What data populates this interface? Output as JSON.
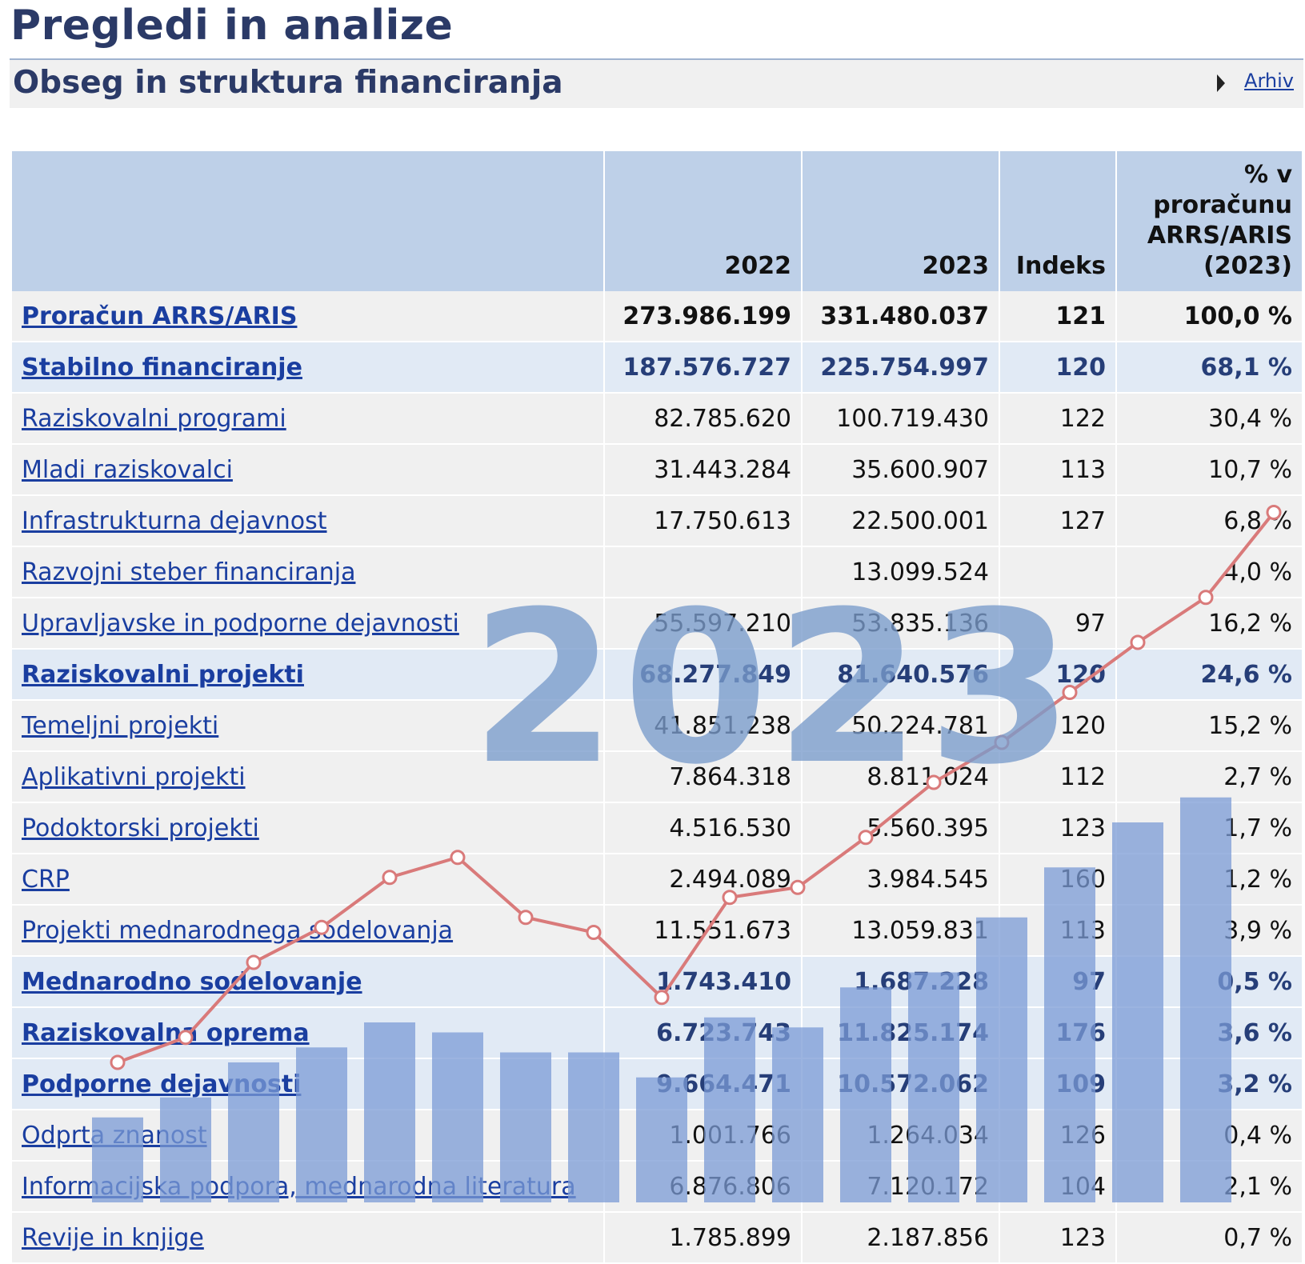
{
  "page": {
    "title": "Pregledi in analize",
    "subtitle": "Obseg in struktura financiranja",
    "archive_link": "Arhiv"
  },
  "table": {
    "headers": [
      "",
      "2022",
      "2023",
      "Indeks",
      "% v proračunu ARRS/ARIS (2023)"
    ],
    "rows": [
      {
        "kind": "total",
        "label": "Proračun ARRS/ARIS",
        "y2022": "273.986.199",
        "y2023": "331.480.037",
        "index": "121",
        "pct": "100,0 %"
      },
      {
        "kind": "group",
        "label": "Stabilno financiranje",
        "y2022": "187.576.727",
        "y2023": "225.754.997",
        "index": "120",
        "pct": "68,1 %"
      },
      {
        "kind": "sub",
        "label": "Raziskovalni programi",
        "y2022": "82.785.620",
        "y2023": "100.719.430",
        "index": "122",
        "pct": "30,4 %"
      },
      {
        "kind": "sub",
        "label": "Mladi raziskovalci",
        "y2022": "31.443.284",
        "y2023": "35.600.907",
        "index": "113",
        "pct": "10,7 %"
      },
      {
        "kind": "sub",
        "label": "Infrastrukturna dejavnost",
        "y2022": "17.750.613",
        "y2023": "22.500.001",
        "index": "127",
        "pct": "6,8 %"
      },
      {
        "kind": "sub",
        "label": "Razvojni steber financiranja",
        "y2022": "",
        "y2023": "13.099.524",
        "index": "",
        "pct": "4,0 %"
      },
      {
        "kind": "sub",
        "label": "Upravljavske in podporne dejavnosti",
        "y2022": "55.597.210",
        "y2023": "53.835.136",
        "index": "97",
        "pct": "16,2 %"
      },
      {
        "kind": "group",
        "label": "Raziskovalni projekti",
        "y2022": "68.277.849",
        "y2023": "81.640.576",
        "index": "120",
        "pct": "24,6 %"
      },
      {
        "kind": "sub",
        "label": "Temeljni projekti",
        "y2022": "41.851.238",
        "y2023": "50.224.781",
        "index": "120",
        "pct": "15,2 %"
      },
      {
        "kind": "sub",
        "label": "Aplikativni projekti",
        "y2022": "7.864.318",
        "y2023": "8.811.024",
        "index": "112",
        "pct": "2,7 %"
      },
      {
        "kind": "sub",
        "label": "Podoktorski projekti",
        "y2022": "4.516.530",
        "y2023": "5.560.395",
        "index": "123",
        "pct": "1,7 %"
      },
      {
        "kind": "sub",
        "label": "CRP",
        "y2022": "2.494.089",
        "y2023": "3.984.545",
        "index": "160",
        "pct": "1,2 %"
      },
      {
        "kind": "sub",
        "label": "Projekti mednarodnega sodelovanja",
        "y2022": "11.551.673",
        "y2023": "13.059.831",
        "index": "113",
        "pct": "3,9 %"
      },
      {
        "kind": "group",
        "label": "Mednarodno sodelovanje",
        "y2022": "1.743.410",
        "y2023": "1.687.228",
        "index": "97",
        "pct": "0,5 %"
      },
      {
        "kind": "group",
        "label": "Raziskovalna oprema",
        "y2022": "6.723.743",
        "y2023": "11.825.174",
        "index": "176",
        "pct": "3,6 %"
      },
      {
        "kind": "group",
        "label": "Podporne dejavnosti",
        "y2022": "9.664.471",
        "y2023": "10.572.062",
        "index": "109",
        "pct": "3,2 %"
      },
      {
        "kind": "sub",
        "label": "Odprta znanost",
        "y2022": "1.001.766",
        "y2023": "1.264.034",
        "index": "126",
        "pct": "0,4 %"
      },
      {
        "kind": "sub",
        "label": "Informacijska podpora, mednarodna literatura",
        "y2022": "6.876.806",
        "y2023": "7.120.172",
        "index": "104",
        "pct": "2,1 %"
      },
      {
        "kind": "sub",
        "label": "Revije in knjige",
        "y2022": "1.785.899",
        "y2023": "2.187.856",
        "index": "123",
        "pct": "0,7 %"
      }
    ]
  },
  "watermark": {
    "year": "2023",
    "bar_color": "#7b9bd6",
    "line_color": "#d97a7a",
    "chart_data": {
      "type": "bar",
      "values": [
        17,
        21,
        28,
        31,
        36,
        34,
        30,
        30,
        25,
        37,
        35,
        43,
        46,
        57,
        67,
        76,
        81
      ],
      "line_values": [
        28,
        33,
        48,
        55,
        65,
        69,
        57,
        54,
        41,
        61,
        63,
        73,
        84,
        92,
        102,
        112,
        121,
        138
      ],
      "ylim": [
        0,
        160
      ]
    }
  },
  "colors": {
    "title": "#2b3a67",
    "header_bg": "#bed0e8",
    "group_row_bg": "#e1eaf5",
    "row_bg": "#f0f0f0",
    "link": "#1a3ea0"
  }
}
